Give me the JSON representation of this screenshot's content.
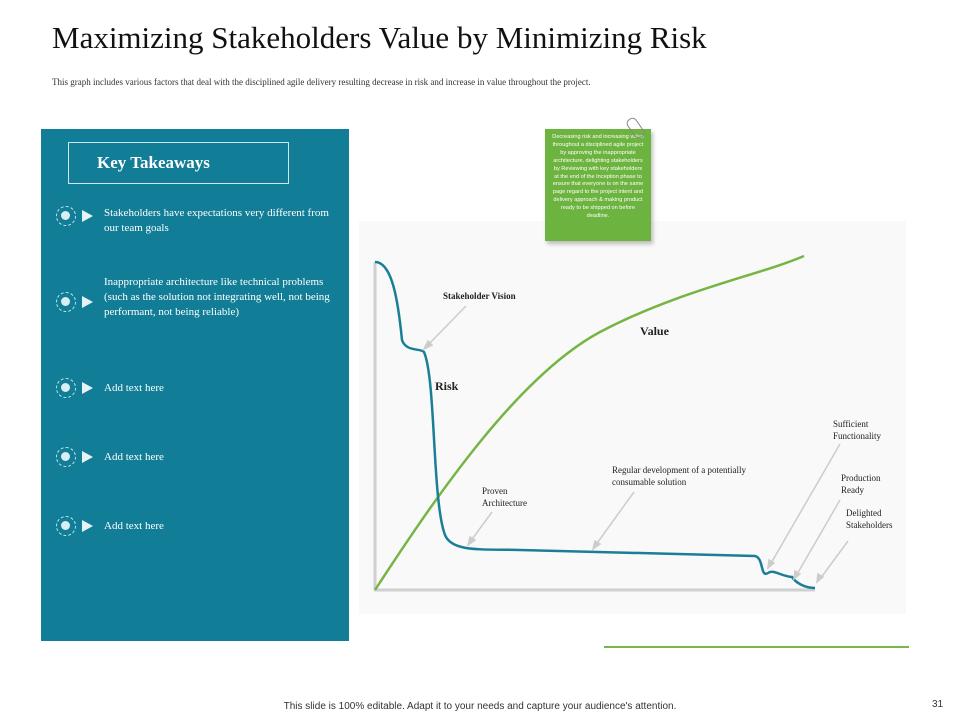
{
  "title": "Maximizing Stakeholders Value by Minimizing Risk",
  "subtitle": "This graph includes various factors that deal with the disciplined agile delivery resulting decrease in risk and increase in value throughout the project.",
  "key_takeaways": {
    "heading": "Key Takeaways",
    "items": [
      {
        "text": "Stakeholders have expectations very different from our team goals",
        "icon": "target-dot-icon"
      },
      {
        "text": "Inappropriate architecture like technical problems (such as the solution not integrating well, not being performant, not being reliable)",
        "icon": "target-dot-icon"
      },
      {
        "text": "Add text here",
        "icon": "target-dot-icon"
      },
      {
        "text": "Add text here",
        "icon": "target-dot-icon"
      },
      {
        "text": "Add text here",
        "icon": "target-dot-icon"
      }
    ]
  },
  "sticky_note": {
    "text": "Decreasing risk and increasing value throughout a disciplined agile project by approving the inappropriate architecture, delighting stakeholders by Reviewing with key stakeholders at the end of the Inception phase to ensure that everyone is on the same page regard to the project intent and delivery approach & making product ready to be shipped on before deadline."
  },
  "diagram": {
    "curves": {
      "value_label": "Value",
      "risk_label": "Risk"
    },
    "annotations": {
      "stakeholder_vision": "Stakeholder Vision",
      "proven_architecture": "Proven Architecture",
      "regular_development": "Regular development of a potentially consumable solution",
      "sufficient_functionality": "Sufficient Functionality",
      "production_ready": "Production Ready",
      "delighted_stakeholders": "Delighted Stakeholders"
    },
    "colors": {
      "risk": "#1a7f96",
      "value": "#76b544",
      "axis": "#d0d0d0",
      "pointer": "#cccccc"
    }
  },
  "footer": "This slide is 100% editable.  Adapt it to your needs and capture your audience's attention.",
  "page_number": "31",
  "colors": {
    "panel": "#127d96",
    "accent_green": "#6db33f"
  }
}
